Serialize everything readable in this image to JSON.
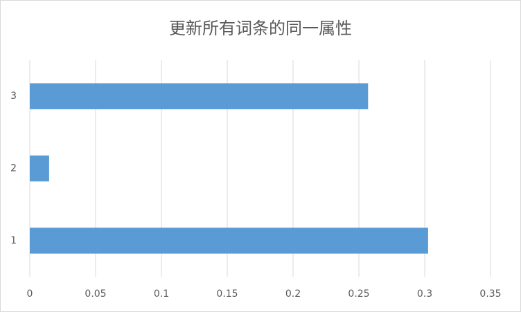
{
  "chart_data": {
    "type": "barh",
    "title": "更新所有词条的同一属性",
    "categories": [
      "1",
      "2",
      "3"
    ],
    "values": [
      0.3026,
      0.0147,
      0.257
    ],
    "color": "#5b9bd5",
    "xlim": [
      0,
      0.35
    ],
    "xticks": [
      0,
      0.05,
      0.1,
      0.15,
      0.2,
      0.25,
      0.3,
      0.35
    ],
    "grid": true
  }
}
